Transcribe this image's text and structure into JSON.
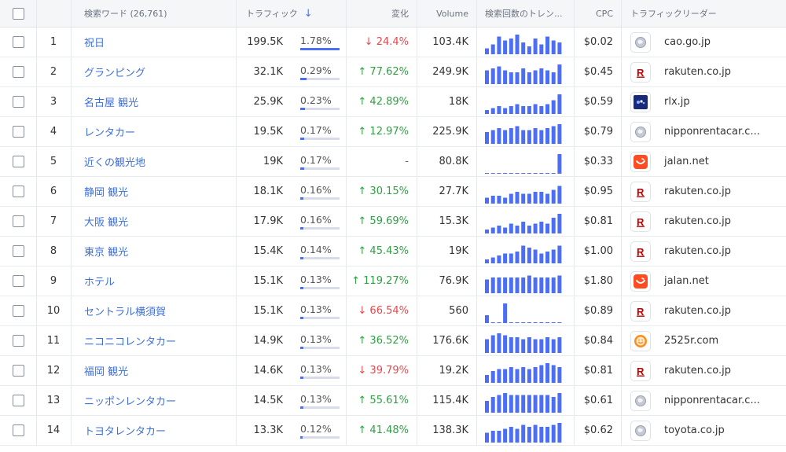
{
  "header": {
    "keyword": "検索ワード (26,761)",
    "traffic": "トラフィック",
    "sort_arrow": "↓",
    "change": "変化",
    "volume": "Volume",
    "trend": "検索回数のトレン...",
    "cpc": "CPC",
    "leader": "トラフィックリーダー"
  },
  "colors": {
    "link": "#3d6fd9",
    "bar": "#4c6ef5",
    "up": "#2ea043",
    "down": "#e5484d"
  },
  "rows": [
    {
      "num": "1",
      "keyword": "祝日",
      "traffic": "199.5K",
      "share": "1.78%",
      "share_value": 0.178,
      "change": "24.4%",
      "dir": "down",
      "volume": "103.4K",
      "cpc": "$0.02",
      "icon": "globe-icon",
      "domain": "cao.go.jp",
      "trend": [
        3,
        5,
        9,
        7,
        8,
        10,
        6,
        4,
        8,
        5,
        9,
        7,
        6
      ]
    },
    {
      "num": "2",
      "keyword": "グランピング",
      "traffic": "32.1K",
      "share": "0.29%",
      "share_value": 0.029,
      "change": "77.62%",
      "dir": "up",
      "volume": "249.9K",
      "cpc": "$0.45",
      "icon": "rakuten-icon",
      "domain": "rakuten.co.jp",
      "trend": [
        7,
        8,
        9,
        7,
        6,
        6,
        8,
        6,
        7,
        8,
        7,
        6,
        10
      ]
    },
    {
      "num": "3",
      "keyword": "名古屋 観光",
      "traffic": "25.9K",
      "share": "0.23%",
      "share_value": 0.023,
      "change": "42.89%",
      "dir": "up",
      "volume": "18K",
      "cpc": "$0.59",
      "icon": "rlx-icon",
      "domain": "rlx.jp",
      "trend": [
        2,
        3,
        4,
        3,
        4,
        5,
        4,
        4,
        5,
        4,
        5,
        7,
        10
      ]
    },
    {
      "num": "4",
      "keyword": "レンタカー",
      "traffic": "19.5K",
      "share": "0.17%",
      "share_value": 0.017,
      "change": "12.97%",
      "dir": "up",
      "volume": "225.9K",
      "cpc": "$0.79",
      "icon": "globe-icon",
      "domain": "nipponrentacar.c...",
      "trend": [
        6,
        7,
        8,
        7,
        8,
        9,
        7,
        7,
        8,
        7,
        8,
        9,
        10
      ]
    },
    {
      "num": "5",
      "keyword": "近くの観光地",
      "traffic": "19K",
      "share": "0.17%",
      "share_value": 0.017,
      "change": "-",
      "dir": "none",
      "volume": "80.8K",
      "cpc": "$0.33",
      "icon": "jalan-icon",
      "domain": "jalan.net",
      "trend": [
        0,
        0,
        0,
        0,
        0,
        0,
        0,
        0,
        0,
        0,
        0,
        0,
        10
      ]
    },
    {
      "num": "6",
      "keyword": "静岡 観光",
      "traffic": "18.1K",
      "share": "0.16%",
      "share_value": 0.016,
      "change": "30.15%",
      "dir": "up",
      "volume": "27.7K",
      "cpc": "$0.95",
      "icon": "rakuten-icon",
      "domain": "rakuten.co.jp",
      "trend": [
        3,
        4,
        4,
        3,
        5,
        6,
        5,
        5,
        6,
        6,
        5,
        7,
        9
      ]
    },
    {
      "num": "7",
      "keyword": "大阪 観光",
      "traffic": "17.9K",
      "share": "0.16%",
      "share_value": 0.016,
      "change": "59.69%",
      "dir": "up",
      "volume": "15.3K",
      "cpc": "$0.81",
      "icon": "rakuten-icon",
      "domain": "rakuten.co.jp",
      "trend": [
        2,
        3,
        4,
        3,
        5,
        4,
        6,
        4,
        5,
        6,
        5,
        8,
        10
      ]
    },
    {
      "num": "8",
      "keyword": "東京 観光",
      "traffic": "15.4K",
      "share": "0.14%",
      "share_value": 0.014,
      "change": "45.43%",
      "dir": "up",
      "volume": "19K",
      "cpc": "$1.00",
      "icon": "rakuten-icon",
      "domain": "rakuten.co.jp",
      "trend": [
        2,
        3,
        4,
        5,
        5,
        6,
        9,
        8,
        7,
        5,
        6,
        7,
        9
      ]
    },
    {
      "num": "9",
      "keyword": "ホテル",
      "traffic": "15.1K",
      "share": "0.13%",
      "share_value": 0.013,
      "change": "119.27%",
      "dir": "up",
      "volume": "76.9K",
      "cpc": "$1.80",
      "icon": "jalan-icon",
      "domain": "jalan.net",
      "trend": [
        7,
        8,
        8,
        8,
        8,
        8,
        8,
        9,
        8,
        8,
        8,
        8,
        9
      ]
    },
    {
      "num": "10",
      "keyword": "セントラル横須賀",
      "traffic": "15.1K",
      "share": "0.13%",
      "share_value": 0.013,
      "change": "66.54%",
      "dir": "down",
      "volume": "560",
      "cpc": "$0.89",
      "icon": "rakuten-icon",
      "domain": "rakuten.co.jp",
      "trend": [
        4,
        0,
        0,
        10,
        0,
        0,
        0,
        0,
        0,
        0,
        0,
        0,
        0
      ]
    },
    {
      "num": "11",
      "keyword": "ニコニコレンタカー",
      "traffic": "14.9K",
      "share": "0.13%",
      "share_value": 0.013,
      "change": "36.52%",
      "dir": "up",
      "volume": "176.6K",
      "cpc": "$0.84",
      "icon": "niconico-icon",
      "domain": "2525r.com",
      "trend": [
        7,
        9,
        10,
        9,
        8,
        8,
        7,
        8,
        7,
        7,
        8,
        7,
        8
      ]
    },
    {
      "num": "12",
      "keyword": "福岡 観光",
      "traffic": "14.6K",
      "share": "0.13%",
      "share_value": 0.013,
      "change": "39.79%",
      "dir": "down",
      "volume": "19.2K",
      "cpc": "$0.81",
      "icon": "rakuten-icon",
      "domain": "rakuten.co.jp",
      "trend": [
        4,
        6,
        7,
        7,
        8,
        7,
        8,
        7,
        8,
        9,
        10,
        9,
        8
      ]
    },
    {
      "num": "13",
      "keyword": "ニッポンレンタカー",
      "traffic": "14.5K",
      "share": "0.13%",
      "share_value": 0.013,
      "change": "55.61%",
      "dir": "up",
      "volume": "115.4K",
      "cpc": "$0.61",
      "icon": "globe-icon",
      "domain": "nipponrentacar.c...",
      "trend": [
        6,
        8,
        9,
        10,
        9,
        9,
        9,
        9,
        9,
        9,
        9,
        8,
        10
      ]
    },
    {
      "num": "14",
      "keyword": "トヨタレンタカー",
      "traffic": "13.3K",
      "share": "0.12%",
      "share_value": 0.012,
      "change": "41.48%",
      "dir": "up",
      "volume": "138.3K",
      "cpc": "$0.62",
      "icon": "globe-icon",
      "domain": "toyota.co.jp",
      "trend": [
        5,
        6,
        6,
        7,
        8,
        7,
        9,
        8,
        9,
        8,
        8,
        9,
        10
      ]
    }
  ]
}
